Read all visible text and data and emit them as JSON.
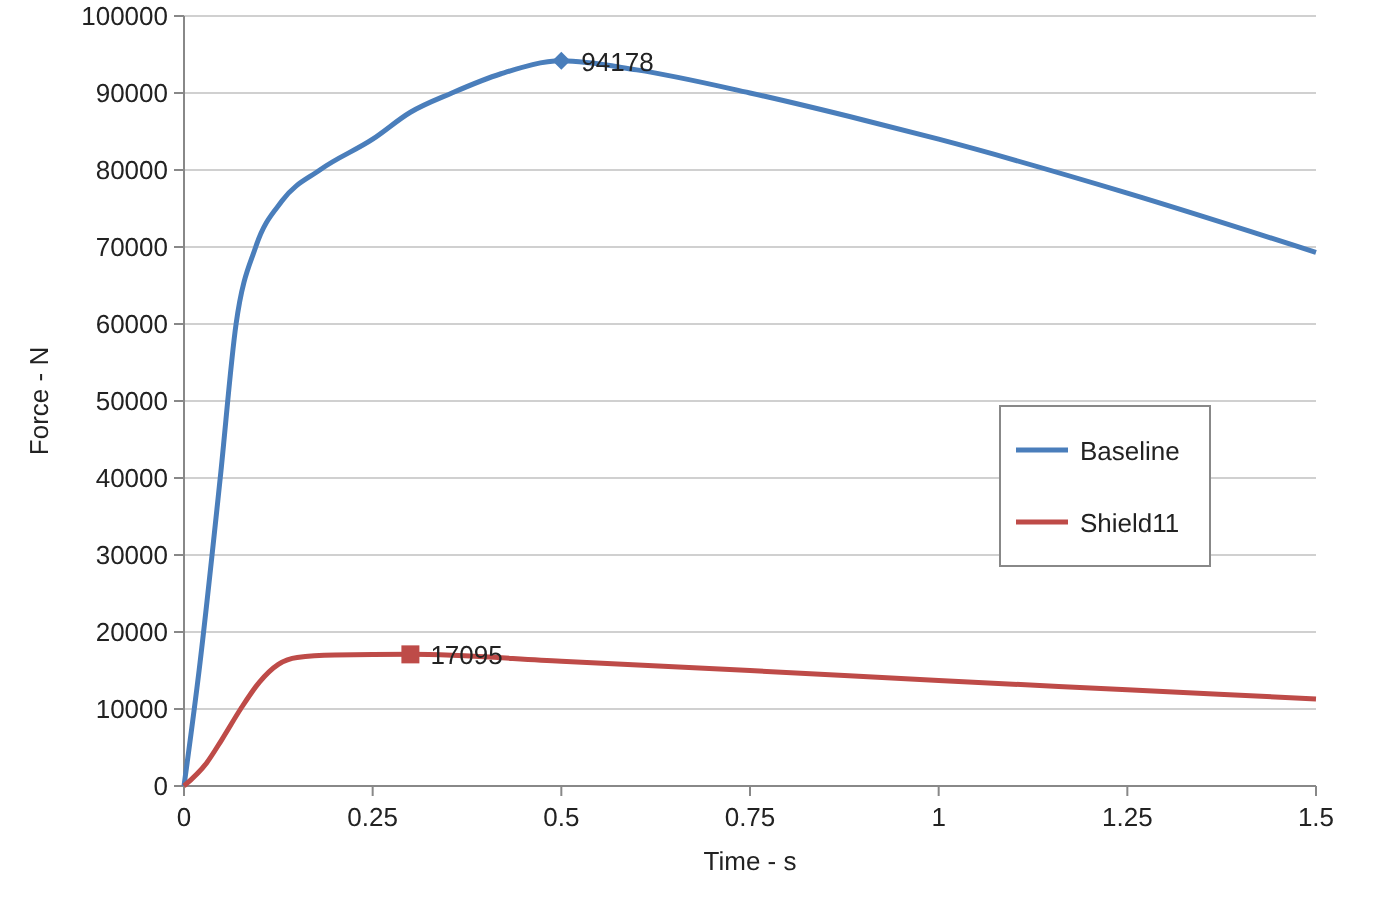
{
  "chart_data": {
    "type": "line",
    "xlabel": "Time - s",
    "ylabel": "Force - N",
    "xlim": [
      0,
      1.5
    ],
    "xticks": [
      0,
      0.25,
      0.5,
      0.75,
      1,
      1.25,
      1.5
    ],
    "ylim": [
      0,
      100000
    ],
    "yticks": [
      0,
      10000,
      20000,
      30000,
      40000,
      50000,
      60000,
      70000,
      80000,
      90000,
      100000
    ],
    "grid": "y",
    "legend": "right",
    "marker": "none",
    "series": [
      {
        "name": "Baseline",
        "color": "#4a7ebb",
        "x": [
          0,
          0.02,
          0.048,
          0.069,
          0.095,
          0.13,
          0.18,
          0.25,
          0.3,
          0.355,
          0.42,
          0.5,
          0.6,
          0.75,
          0.9,
          1.0,
          1.25,
          1.5
        ],
        "values": [
          0,
          15000,
          40000,
          60000,
          70000,
          76000,
          80000,
          84000,
          87500,
          90000,
          92500,
          94178,
          93000,
          90000,
          86500,
          84000,
          77000,
          69300
        ]
      },
      {
        "name": "Shield11",
        "color": "#be4b48",
        "x": [
          0,
          0.03,
          0.05,
          0.075,
          0.1,
          0.125,
          0.15,
          0.2,
          0.3,
          0.5,
          0.75,
          1.0,
          1.25,
          1.5
        ],
        "values": [
          0,
          3000,
          6000,
          10000,
          13500,
          15800,
          16700,
          17000,
          17095,
          16200,
          15000,
          13700,
          12500,
          11300
        ]
      },
      {
        "type": "scatter",
        "marker": "diamond",
        "color": "#4a7ebb",
        "x": [
          0.5
        ],
        "values": [
          94178
        ]
      },
      {
        "type": "scatter",
        "marker": "square",
        "color": "#be4b48",
        "x": [
          0.3
        ],
        "values": [
          17095
        ]
      }
    ],
    "annotations": [
      {
        "text": "94178",
        "x": 0.5,
        "y": 94178
      },
      {
        "text": "17095",
        "x": 0.3,
        "y": 17095
      }
    ]
  }
}
